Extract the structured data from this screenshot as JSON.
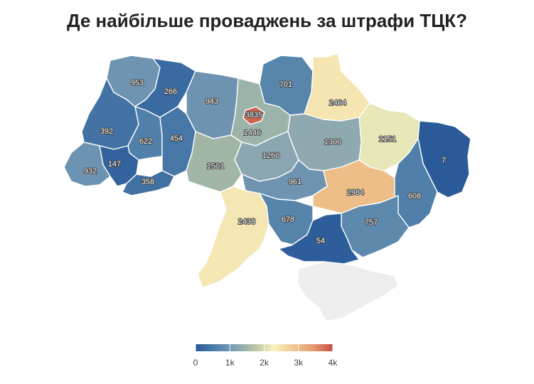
{
  "title": "Де найбільше проваджень за штрафи ТЦК?",
  "colors": {
    "scale": [
      "#2a5a98",
      "#4d7ea9",
      "#7e9fb5",
      "#b7c4a0",
      "#f7f2c0",
      "#efc890",
      "#e49a6e",
      "#c64c45"
    ],
    "no_data": "#eeeeee"
  },
  "chart_data": {
    "type": "heatmap",
    "subtype": "choropleth-map",
    "title": "Де найбільше проваджень за штрафи ТЦК?",
    "regions": [
      {
        "value": 953
      },
      {
        "value": 266
      },
      {
        "value": 943
      },
      {
        "value": 3835
      },
      {
        "value": 701
      },
      {
        "value": 2464
      },
      {
        "value": 392
      },
      {
        "value": 622
      },
      {
        "value": 454
      },
      {
        "value": 1446
      },
      {
        "value": 2151
      },
      {
        "value": 1300
      },
      {
        "value": 1260
      },
      {
        "value": 147
      },
      {
        "value": 932
      },
      {
        "value": 1501
      },
      {
        "value": 7
      },
      {
        "value": 358
      },
      {
        "value": 961
      },
      {
        "value": 2984
      },
      {
        "value": 608
      },
      {
        "value": 2438
      },
      {
        "value": 678
      },
      {
        "value": 757
      },
      {
        "value": 54
      }
    ],
    "legend": {
      "min": 0,
      "max": 4000,
      "ticks": [
        "0",
        "1k",
        "2k",
        "3k",
        "4k"
      ],
      "position": "bottom"
    }
  }
}
